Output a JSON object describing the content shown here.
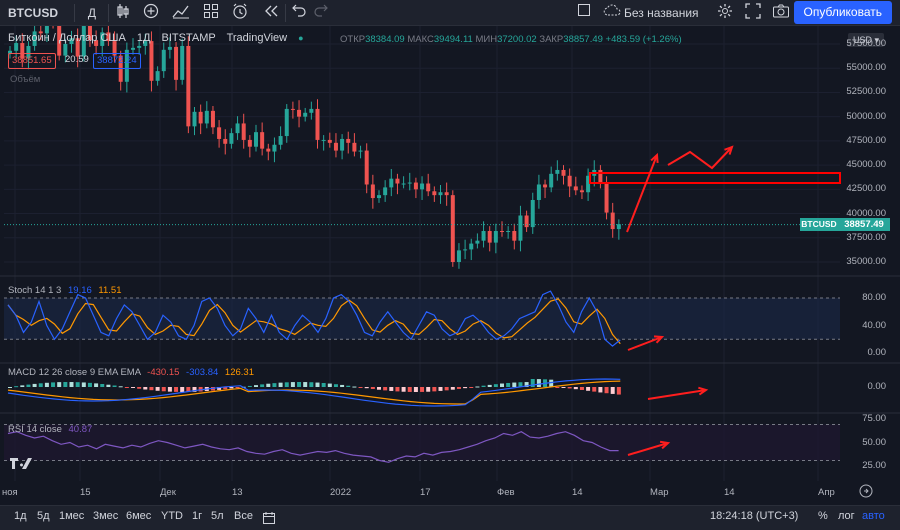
{
  "topbar": {
    "symbol": "BTCUSD",
    "interval": "Д",
    "layout_name": "Без названия",
    "publish": "Опубликовать"
  },
  "legend": {
    "title": "Биткоин / Доллар США",
    "interval": "1Д",
    "exchange": "BITSTAMP",
    "source": "TradingView",
    "open_label": "ОТКР",
    "open": "38384.09",
    "high_label": "МАКС",
    "high": "39494.11",
    "low_label": "МИН",
    "low": "37200.02",
    "close_label": "ЗАКР",
    "close": "38857.49",
    "change": "+483.59 (+1.26%)",
    "bid": "38851.65",
    "spread": "20.59",
    "ask": "38872.24",
    "volume_label": "Объём"
  },
  "price_axis": {
    "currency": "USD",
    "ticks": [
      "57500.00",
      "55000.00",
      "52500.00",
      "50000.00",
      "47500.00",
      "45000.00",
      "42500.00",
      "40000.00",
      "37500.00",
      "35000.00"
    ],
    "current_symbol": "BTCUSD",
    "current_price": "38857.49"
  },
  "stoch": {
    "label": "Stoch 14 1 3",
    "k": "19.16",
    "d": "11.51",
    "ticks": [
      "80.00",
      "40.00",
      "0.00"
    ]
  },
  "macd": {
    "label": "MACD 12 26 close 9 EMA EMA",
    "hist": "-430.15",
    "macd": "-303.84",
    "signal": "126.31",
    "ticks": [
      "0.00"
    ]
  },
  "rsi": {
    "label": "RSI 14 close",
    "value": "40.87",
    "ticks": [
      "75.00",
      "50.00",
      "25.00"
    ]
  },
  "dates": [
    {
      "t": "ноя",
      "x": 2
    },
    {
      "t": "15",
      "x": 80
    },
    {
      "t": "Дек",
      "x": 160
    },
    {
      "t": "13",
      "x": 232
    },
    {
      "t": "2022",
      "x": 330
    },
    {
      "t": "17",
      "x": 420
    },
    {
      "t": "Фев",
      "x": 497
    },
    {
      "t": "14",
      "x": 572
    },
    {
      "t": "Мар",
      "x": 650
    },
    {
      "t": "14",
      "x": 724
    },
    {
      "t": "Апр",
      "x": 818
    }
  ],
  "bottombar": {
    "ranges": [
      "1д",
      "5д",
      "1мес",
      "3мес",
      "6мес",
      "YTD",
      "1г",
      "5л",
      "Все"
    ],
    "clock": "18:24:18 (UTC+3)",
    "percent": "%",
    "log": "лог",
    "auto": "авто"
  },
  "colors": {
    "up": "#26a69a",
    "down": "#ef5350",
    "bg": "#131722",
    "accent": "#2962ff"
  }
}
